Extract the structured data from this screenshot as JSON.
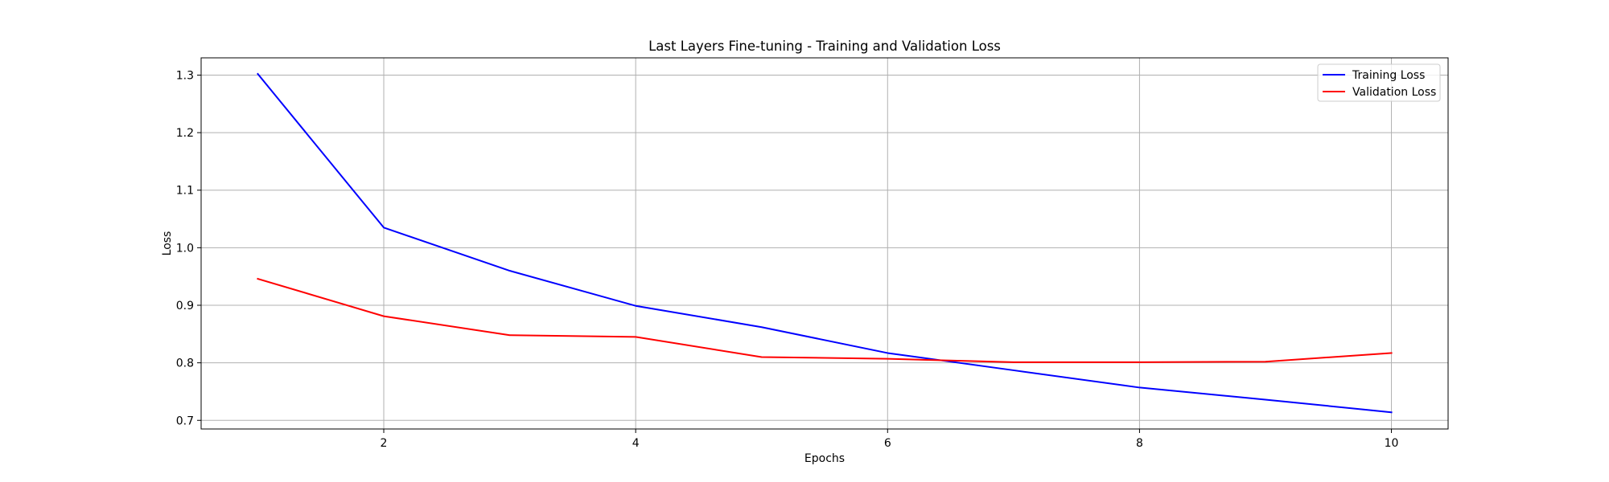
{
  "chart_data": {
    "type": "line",
    "title": "Last Layers Fine-tuning - Training and Validation Loss",
    "xlabel": "Epochs",
    "ylabel": "Loss",
    "x": [
      1,
      2,
      3,
      4,
      5,
      6,
      7,
      8,
      9,
      10
    ],
    "xlim": [
      0.55,
      10.45
    ],
    "ylim": [
      0.685,
      1.33
    ],
    "xticks": [
      2,
      4,
      6,
      8,
      10
    ],
    "yticks": [
      0.7,
      0.8,
      0.9,
      1.0,
      1.1,
      1.2,
      1.3
    ],
    "xtick_labels": [
      "2",
      "4",
      "6",
      "8",
      "10"
    ],
    "ytick_labels": [
      "0.7",
      "0.8",
      "0.9",
      "1.0",
      "1.1",
      "1.2",
      "1.3"
    ],
    "grid": true,
    "legend_position": "top-right",
    "series": [
      {
        "name": "Training Loss",
        "color": "#0000ff",
        "values": [
          1.302,
          1.035,
          0.96,
          0.899,
          0.862,
          0.817,
          0.787,
          0.757,
          0.736,
          0.714
        ]
      },
      {
        "name": "Validation Loss",
        "color": "#ff0000",
        "values": [
          0.946,
          0.881,
          0.848,
          0.845,
          0.81,
          0.807,
          0.801,
          0.801,
          0.802,
          0.817
        ]
      }
    ]
  }
}
